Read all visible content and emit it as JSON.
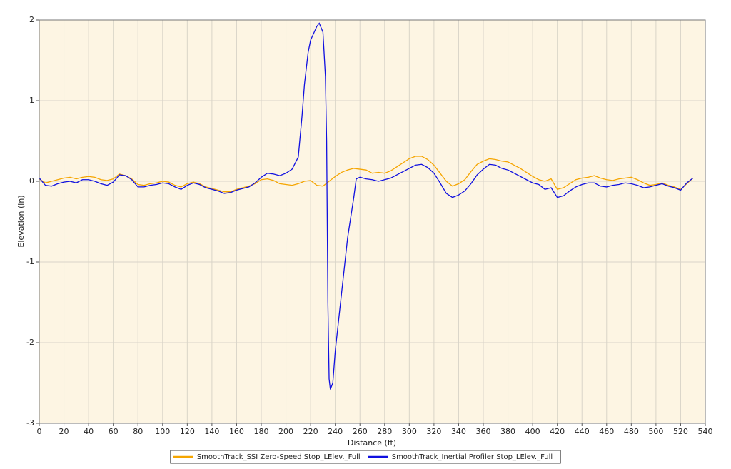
{
  "chart_data": {
    "type": "line",
    "x_label": "Distance (ft)",
    "y_label": "Elevation (in)",
    "xlim": [
      0,
      540
    ],
    "ylim": [
      -3,
      2
    ],
    "xticks": [
      0,
      20,
      40,
      60,
      80,
      100,
      120,
      140,
      160,
      180,
      200,
      220,
      240,
      260,
      280,
      300,
      320,
      340,
      360,
      380,
      400,
      420,
      440,
      460,
      480,
      500,
      520,
      540
    ],
    "yticks": [
      -3,
      -2,
      -1,
      0,
      1,
      2
    ],
    "grid": true,
    "legend": "bottom",
    "series": [
      {
        "name": "SmoothTrack_SSI Zero-Speed Stop_LElev._Full",
        "color": "#f5a500",
        "x": [
          0,
          5,
          10,
          15,
          20,
          25,
          30,
          35,
          40,
          45,
          50,
          55,
          60,
          65,
          70,
          75,
          80,
          85,
          90,
          95,
          100,
          105,
          110,
          115,
          120,
          125,
          130,
          135,
          140,
          145,
          150,
          155,
          160,
          165,
          170,
          175,
          180,
          185,
          190,
          195,
          200,
          205,
          210,
          215,
          220,
          225,
          230,
          235,
          240,
          245,
          250,
          255,
          260,
          265,
          270,
          275,
          280,
          285,
          290,
          295,
          300,
          305,
          310,
          315,
          320,
          325,
          330,
          335,
          340,
          345,
          350,
          355,
          360,
          365,
          370,
          375,
          380,
          385,
          390,
          395,
          400,
          405,
          410,
          415,
          420,
          425,
          430,
          435,
          440,
          445,
          450,
          455,
          460,
          465,
          470,
          475,
          480,
          485,
          490,
          495,
          500,
          505,
          510,
          515,
          520,
          525,
          530
        ],
        "values": [
          0.03,
          -0.02,
          0.0,
          0.02,
          0.04,
          0.05,
          0.03,
          0.05,
          0.06,
          0.05,
          0.02,
          0.01,
          0.03,
          0.09,
          0.07,
          0.03,
          -0.04,
          -0.05,
          -0.03,
          -0.02,
          0.0,
          -0.01,
          -0.05,
          -0.07,
          -0.03,
          -0.01,
          -0.03,
          -0.07,
          -0.09,
          -0.11,
          -0.13,
          -0.13,
          -0.1,
          -0.08,
          -0.06,
          -0.03,
          0.02,
          0.03,
          0.01,
          -0.03,
          -0.04,
          -0.05,
          -0.03,
          0.0,
          0.01,
          -0.05,
          -0.06,
          0.0,
          0.06,
          0.11,
          0.14,
          0.16,
          0.15,
          0.14,
          0.1,
          0.11,
          0.1,
          0.13,
          0.18,
          0.23,
          0.28,
          0.31,
          0.31,
          0.27,
          0.2,
          0.1,
          0.0,
          -0.06,
          -0.03,
          0.02,
          0.12,
          0.21,
          0.25,
          0.28,
          0.27,
          0.25,
          0.24,
          0.2,
          0.16,
          0.11,
          0.06,
          0.02,
          0.0,
          0.03,
          -0.1,
          -0.08,
          -0.03,
          0.02,
          0.04,
          0.05,
          0.07,
          0.04,
          0.02,
          0.01,
          0.03,
          0.04,
          0.05,
          0.02,
          -0.02,
          -0.05,
          -0.04,
          -0.02,
          -0.05,
          -0.07,
          -0.1,
          -0.03,
          0.04
        ]
      },
      {
        "name": "SmoothTrack_Inertial Profiler Stop_LElev._Full",
        "color": "#1010e0",
        "x": [
          0,
          5,
          10,
          15,
          20,
          25,
          30,
          35,
          40,
          45,
          50,
          55,
          60,
          65,
          70,
          75,
          80,
          85,
          90,
          95,
          100,
          105,
          110,
          115,
          120,
          125,
          130,
          135,
          140,
          145,
          150,
          155,
          160,
          165,
          170,
          175,
          180,
          185,
          190,
          195,
          200,
          205,
          210,
          213,
          215,
          218,
          220,
          225,
          227,
          230,
          232,
          233,
          234,
          235,
          236,
          238,
          240,
          245,
          250,
          255,
          257,
          260,
          265,
          270,
          275,
          280,
          285,
          290,
          295,
          300,
          305,
          310,
          315,
          320,
          325,
          330,
          335,
          340,
          345,
          350,
          355,
          360,
          365,
          370,
          375,
          380,
          385,
          390,
          395,
          400,
          405,
          410,
          415,
          420,
          425,
          430,
          435,
          440,
          445,
          450,
          455,
          460,
          465,
          470,
          475,
          480,
          485,
          490,
          495,
          500,
          505,
          510,
          515,
          520,
          525,
          530
        ],
        "values": [
          0.04,
          -0.05,
          -0.06,
          -0.03,
          -0.01,
          0.0,
          -0.02,
          0.02,
          0.02,
          0.0,
          -0.03,
          -0.05,
          -0.01,
          0.08,
          0.07,
          0.02,
          -0.07,
          -0.07,
          -0.05,
          -0.04,
          -0.02,
          -0.03,
          -0.07,
          -0.1,
          -0.05,
          -0.02,
          -0.04,
          -0.08,
          -0.1,
          -0.12,
          -0.15,
          -0.14,
          -0.11,
          -0.09,
          -0.07,
          -0.02,
          0.05,
          0.1,
          0.09,
          0.07,
          0.1,
          0.15,
          0.3,
          0.8,
          1.2,
          1.6,
          1.75,
          1.92,
          1.96,
          1.85,
          1.3,
          0.5,
          -1.5,
          -2.45,
          -2.58,
          -2.5,
          -2.1,
          -1.4,
          -0.7,
          -0.2,
          0.03,
          0.05,
          0.03,
          0.02,
          0.0,
          0.02,
          0.04,
          0.08,
          0.12,
          0.16,
          0.2,
          0.21,
          0.17,
          0.1,
          -0.02,
          -0.15,
          -0.2,
          -0.17,
          -0.12,
          -0.03,
          0.08,
          0.15,
          0.21,
          0.2,
          0.16,
          0.14,
          0.1,
          0.06,
          0.02,
          -0.02,
          -0.04,
          -0.1,
          -0.08,
          -0.2,
          -0.18,
          -0.12,
          -0.07,
          -0.04,
          -0.02,
          -0.02,
          -0.06,
          -0.07,
          -0.05,
          -0.04,
          -0.02,
          -0.03,
          -0.05,
          -0.08,
          -0.07,
          -0.05,
          -0.03,
          -0.06,
          -0.08,
          -0.11,
          -0.02,
          0.04
        ]
      }
    ]
  }
}
